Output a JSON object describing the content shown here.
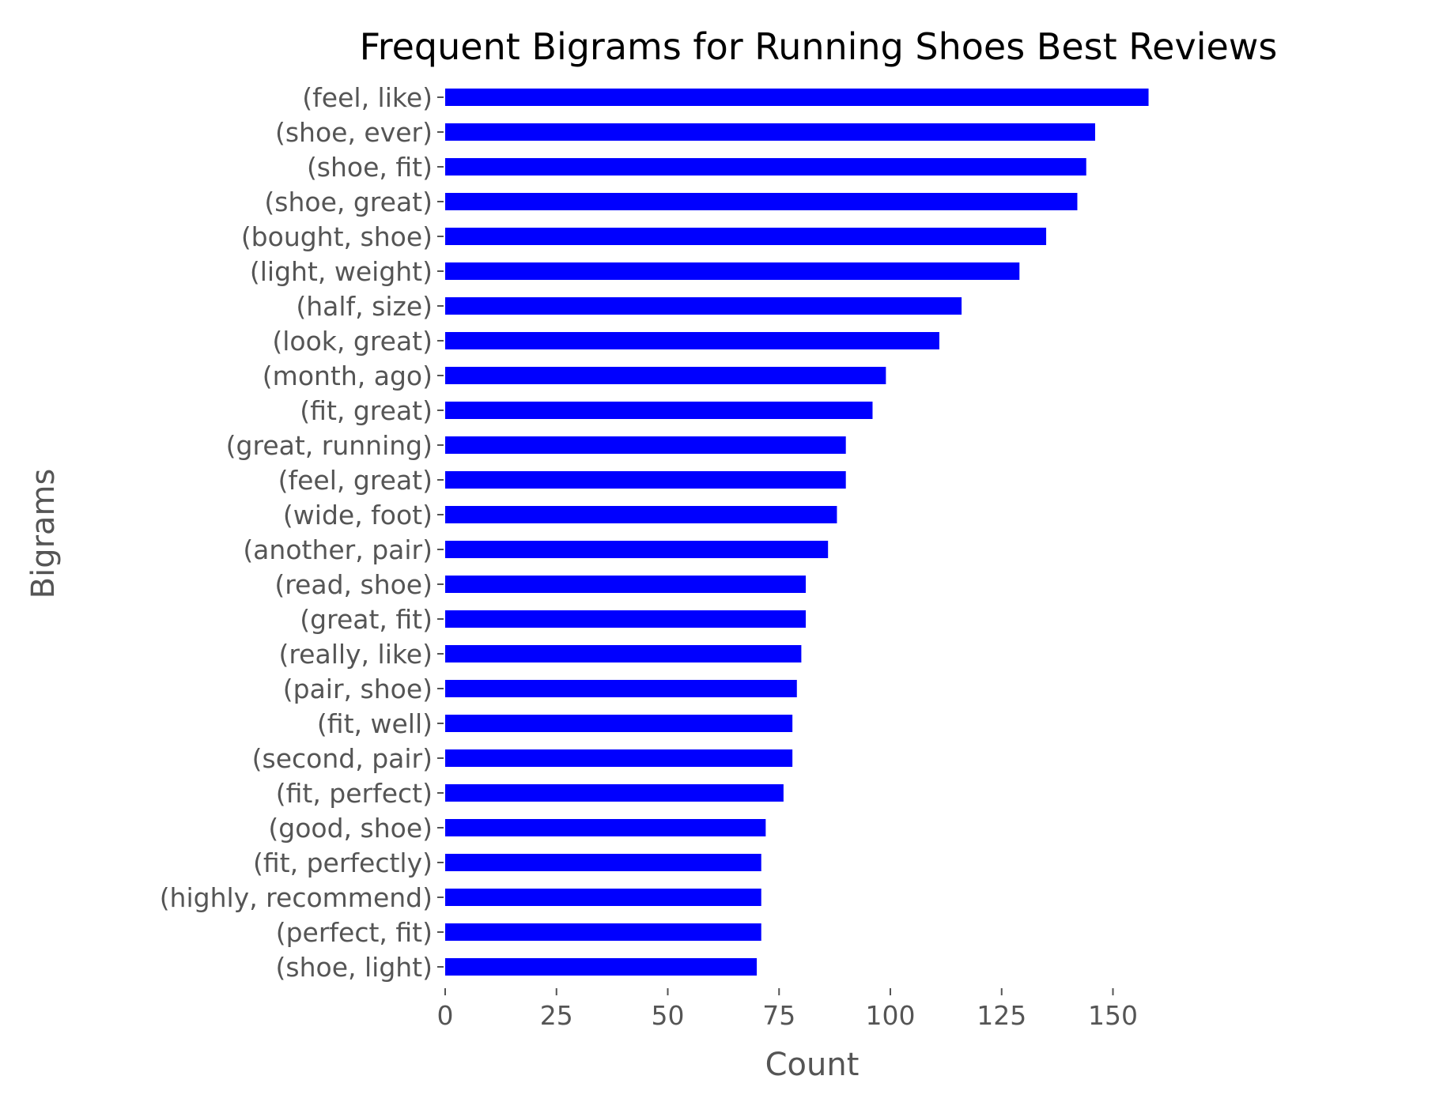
{
  "chart_data": {
    "type": "bar",
    "orientation": "horizontal",
    "title": "Frequent Bigrams for Running Shoes Best Reviews",
    "xlabel": "Count",
    "ylabel": "Bigrams",
    "xlim": [
      0,
      162
    ],
    "xticks": [
      0,
      25,
      50,
      75,
      100,
      125,
      150
    ],
    "grid": false,
    "bar_color": "#0000ff",
    "categories": [
      "(feel, like)",
      "(shoe, ever)",
      "(shoe, fit)",
      "(shoe, great)",
      "(bought, shoe)",
      "(light, weight)",
      "(half, size)",
      "(look, great)",
      "(month, ago)",
      "(fit, great)",
      "(great, running)",
      "(feel, great)",
      "(wide, foot)",
      "(another, pair)",
      "(read, shoe)",
      "(great, fit)",
      "(really, like)",
      "(pair, shoe)",
      "(fit, well)",
      "(second, pair)",
      "(fit, perfect)",
      "(good, shoe)",
      "(fit, perfectly)",
      "(highly, recommend)",
      "(perfect, fit)",
      "(shoe, light)"
    ],
    "values": [
      158,
      146,
      144,
      142,
      135,
      129,
      116,
      111,
      99,
      96,
      90,
      90,
      88,
      86,
      81,
      81,
      80,
      79,
      78,
      78,
      76,
      72,
      71,
      71,
      71,
      70
    ]
  }
}
